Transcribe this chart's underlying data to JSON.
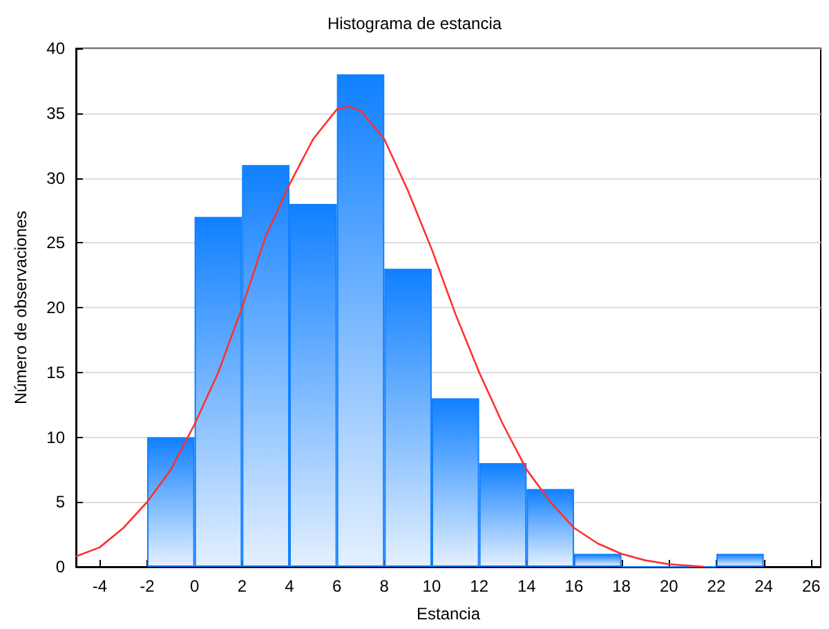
{
  "chart_data": {
    "type": "histogram",
    "title": "Histograma de estancia",
    "xlabel": "Estancia",
    "ylabel": "Número de observaciones",
    "bins": [
      -2,
      0,
      2,
      4,
      6,
      8,
      10,
      12,
      14,
      16,
      18,
      20,
      22,
      24
    ],
    "values": [
      10,
      27,
      31,
      28,
      38,
      23,
      13,
      8,
      6,
      1,
      0,
      0,
      1
    ],
    "color": "#1080ff",
    "series": [
      {
        "type": "line",
        "color": "#ff3030",
        "x": [
          -5,
          -4,
          -3,
          -2,
          -1,
          0,
          1,
          2,
          3,
          4,
          5,
          6,
          6.5,
          7,
          8,
          9,
          10,
          11,
          12,
          13,
          14,
          15,
          16,
          17,
          18,
          19,
          20,
          21.5
        ],
        "values": [
          0.8,
          1.5,
          3,
          5,
          7.5,
          11,
          15,
          20,
          25.5,
          29.5,
          33,
          35.3,
          35.5,
          35.2,
          33,
          29,
          24.5,
          19.5,
          15,
          11,
          7.5,
          5,
          3,
          1.8,
          1,
          0.5,
          0.2,
          0
        ]
      }
    ],
    "xlim": [
      -5,
      26.4
    ],
    "xticks": [
      -4,
      -2,
      0,
      2,
      4,
      6,
      8,
      10,
      12,
      14,
      16,
      18,
      20,
      22,
      24,
      26
    ],
    "ylim": [
      0,
      40
    ],
    "yticks": [
      0,
      5,
      10,
      15,
      20,
      25,
      30,
      35,
      40
    ],
    "grid": "y",
    "marker": "none",
    "line_style": "solid"
  }
}
